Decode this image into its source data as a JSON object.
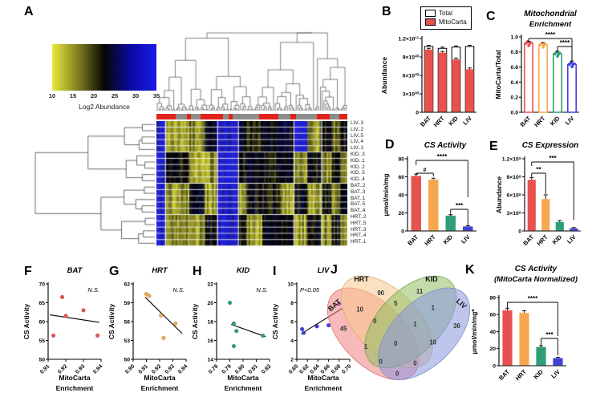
{
  "colors": {
    "red": "#E8524E",
    "orange": "#F6A84E",
    "green": "#2E9E7A",
    "blue": "#4341D8",
    "scatter_blue": "#3C3BE3",
    "annotation_red": "#E2231A",
    "annotation_gray": "#8C8C8C",
    "venn_bat": "#F08080",
    "venn_hrt": "#F8C890",
    "venn_kid": "#90C060",
    "venn_liv": "#8898E0"
  },
  "panel_a": {
    "label": "A",
    "colorbar": {
      "ticks": [
        "10",
        "15",
        "20",
        "25",
        "30",
        "35"
      ],
      "caption": "Log2 Abundance",
      "gradient": [
        "#E9E93C",
        "#000000",
        "#1A1AE8"
      ]
    },
    "row_labels": [
      "LIV..3",
      "LIV..2",
      "LIV..5",
      "LIV..4",
      "LIV..1",
      "KID..3",
      "KID..1",
      "KID..2",
      "KID..5",
      "KID..4",
      "BAT..2",
      "BAT..3",
      "BAT..1",
      "BAT..5",
      "BAT..4",
      "HRT..2",
      "HRT..5",
      "HRT..3",
      "HRT..4",
      "HRT..1"
    ],
    "annotation_segments": [
      {
        "c": "red",
        "w": 0.1
      },
      {
        "c": "gray",
        "w": 0.06
      },
      {
        "c": "red",
        "w": 0.02
      },
      {
        "c": "gray",
        "w": 0.05
      },
      {
        "c": "red",
        "w": 0.12
      },
      {
        "c": "gray",
        "w": 0.03
      },
      {
        "c": "red",
        "w": 0.02
      },
      {
        "c": "gray",
        "w": 0.14
      },
      {
        "c": "red",
        "w": 0.1
      },
      {
        "c": "gray",
        "w": 0.06
      },
      {
        "c": "red",
        "w": 0.03
      },
      {
        "c": "gray",
        "w": 0.11
      },
      {
        "c": "red",
        "w": 0.07
      },
      {
        "c": "gray",
        "w": 0.05
      },
      {
        "c": "red",
        "w": 0.04
      }
    ],
    "heatmap": {
      "rows": 20,
      "cols": 110,
      "block_widths": [
        5,
        14,
        9,
        7,
        12,
        5,
        9,
        11,
        7,
        8,
        8,
        6,
        5,
        4
      ],
      "group_of_rows": [
        "LIV",
        "LIV",
        "LIV",
        "LIV",
        "LIV",
        "KID",
        "KID",
        "KID",
        "KID",
        "KID",
        "BAT",
        "BAT",
        "BAT",
        "BAT",
        "BAT",
        "HRT",
        "HRT",
        "HRT",
        "HRT",
        "HRT"
      ],
      "block_levels": {
        "LIV": [
          1,
          0.15,
          0.2,
          0.55,
          1,
          0.55,
          0.45,
          0.5,
          0.55,
          1,
          0.2,
          0.5,
          0.2,
          0.45
        ],
        "KID": [
          1,
          0.45,
          0.15,
          0.2,
          1,
          0.5,
          0.55,
          0.45,
          0.5,
          0.2,
          0.5,
          0.15,
          0.45,
          0.2
        ],
        "BAT": [
          1,
          0.15,
          0.5,
          0.15,
          1,
          0.2,
          0.5,
          0.45,
          0.15,
          0.5,
          0.15,
          0.5,
          0.2,
          0.5
        ],
        "HRT": [
          1,
          0.2,
          0.15,
          0.5,
          1,
          0.5,
          0.15,
          0.5,
          0.45,
          0.15,
          0.5,
          0.2,
          0.5,
          0.15
        ]
      }
    }
  },
  "chart_data": [
    {
      "panel": "B",
      "type": "bar",
      "style": "grouped-overlay",
      "categories": [
        "BAT",
        "HRT",
        "KID",
        "LIV"
      ],
      "series": [
        {
          "name": "Total",
          "values": [
            107,
            104,
            106,
            107
          ],
          "errors": [
            2,
            2,
            2,
            2
          ],
          "color": "#FFFFFF"
        },
        {
          "name": "MitoCarta",
          "values": [
            102,
            97,
            86,
            70
          ],
          "errors": [
            2,
            2,
            2,
            2
          ],
          "color": "#E8524E"
        }
      ],
      "value_unit": "×10⁹",
      "ylabel": "Abundance",
      "ylim": [
        0,
        120
      ],
      "yticks": [
        {
          "v": 0,
          "t": "0"
        },
        {
          "v": 30,
          "t": "3×10¹⁰"
        },
        {
          "v": 60,
          "t": "6×10¹⁰"
        },
        {
          "v": 90,
          "t": "9×10¹⁰"
        },
        {
          "v": 120,
          "t": "1.2×10¹¹"
        }
      ],
      "legend": [
        "Total",
        "MitoCarta"
      ]
    },
    {
      "panel": "C",
      "type": "bar",
      "style": "outline-scatter",
      "title": [
        "Mitochondrial",
        "Enrichment"
      ],
      "categories": [
        "BAT",
        "HRT",
        "KID",
        "LIV"
      ],
      "values": [
        0.93,
        0.91,
        0.79,
        0.65
      ],
      "errors": [
        0.012,
        0.012,
        0.02,
        0.03
      ],
      "bar_colors": [
        "#E8524E",
        "#F6A84E",
        "#2E9E7A",
        "#4341D8"
      ],
      "ylabel": "MitoCarta/Total",
      "ylim": [
        0,
        1.0
      ],
      "yticks": [
        {
          "v": 0,
          "t": "0.0"
        },
        {
          "v": 0.2,
          "t": "0.2"
        },
        {
          "v": 0.4,
          "t": "0.4"
        },
        {
          "v": 0.6,
          "t": "0.6"
        },
        {
          "v": 0.8,
          "t": "0.8"
        },
        {
          "v": 1.0,
          "t": "1.0"
        }
      ],
      "sig": [
        {
          "i": 0,
          "j": 3,
          "label": "****"
        },
        {
          "i": 2,
          "j": 3,
          "label": "****"
        }
      ]
    },
    {
      "panel": "D",
      "type": "bar",
      "style": "solid",
      "title": [
        "CS Activity"
      ],
      "categories": [
        "BAT",
        "HRT",
        "KID",
        "LIV"
      ],
      "values": [
        61,
        57,
        17,
        5
      ],
      "errors": [
        2,
        1.5,
        1,
        0.8
      ],
      "bar_colors": [
        "#E8524E",
        "#F6A84E",
        "#2E9E7A",
        "#4341D8"
      ],
      "ylabel": "μmol/min/mg",
      "ylim": [
        0,
        80
      ],
      "yticks": [
        {
          "v": 0,
          "t": "0"
        },
        {
          "v": 20,
          "t": "20"
        },
        {
          "v": 40,
          "t": "40"
        },
        {
          "v": 60,
          "t": "60"
        },
        {
          "v": 80,
          "t": "80"
        }
      ],
      "sig": [
        {
          "i": 0,
          "j": 3,
          "label": "****"
        },
        {
          "i": 0,
          "j": 1,
          "label": "#"
        },
        {
          "i": 2,
          "j": 3,
          "label": "***"
        }
      ]
    },
    {
      "panel": "E",
      "type": "bar",
      "style": "solid",
      "title": [
        "CS Expression"
      ],
      "categories": [
        "BAT",
        "HRT",
        "KID",
        "LIV"
      ],
      "values": [
        850,
        530,
        150,
        45
      ],
      "errors": [
        35,
        70,
        25,
        12
      ],
      "value_unit": "×10⁶",
      "bar_colors": [
        "#E8524E",
        "#F6A84E",
        "#2E9E7A",
        "#4341D8"
      ],
      "ylabel": "Abundance",
      "ylim": [
        0,
        1200
      ],
      "yticks": [
        {
          "v": 0,
          "t": "0"
        },
        {
          "v": 300,
          "t": "3×10⁸"
        },
        {
          "v": 600,
          "t": "6×10⁸"
        },
        {
          "v": 900,
          "t": "9×10⁸"
        },
        {
          "v": 1200,
          "t": "1.2×10⁹"
        }
      ],
      "sig": [
        {
          "i": 0,
          "j": 1,
          "label": "**"
        },
        {
          "i": 0,
          "j": 3,
          "label": "***"
        }
      ]
    },
    {
      "panel": "F",
      "type": "scatter",
      "title": "BAT",
      "note": "N.S.",
      "note_pos": "right",
      "color": "#E8524E",
      "points": [
        [
          0.918,
          66.5
        ],
        [
          0.92,
          61.5
        ],
        [
          0.913,
          56.3
        ],
        [
          0.93,
          63.0
        ],
        [
          0.938,
          56.3
        ]
      ],
      "trend": [
        [
          0.911,
          61.8
        ],
        [
          0.939,
          59.8
        ]
      ],
      "xlim": [
        0.91,
        0.94
      ],
      "xticks": [
        "0.91",
        "0.92",
        "0.93",
        "0.94"
      ],
      "ylim": [
        50,
        70
      ],
      "yticks": [
        "50",
        "55",
        "60",
        "65",
        "70"
      ],
      "xlabel": [
        "MitoCarta",
        "Enrichment"
      ],
      "ylabel": "CS Activity"
    },
    {
      "panel": "G",
      "type": "scatter",
      "title": "HRT",
      "note": "N.S.",
      "note_pos": "right",
      "color": "#F6A84E",
      "points": [
        [
          0.91,
          60.4
        ],
        [
          0.912,
          60.1
        ],
        [
          0.921,
          57.0
        ],
        [
          0.923,
          53.4
        ],
        [
          0.932,
          55.7
        ]
      ],
      "trend": [
        [
          0.909,
          59.9
        ],
        [
          0.937,
          54.1
        ]
      ],
      "xlim": [
        0.9,
        0.94
      ],
      "xticks": [
        "0.90",
        "0.91",
        "0.92",
        "0.93",
        "0.94"
      ],
      "ylim": [
        50,
        62
      ],
      "yticks": [
        "50",
        "53",
        "56",
        "59",
        "62"
      ],
      "xlabel": [
        "MitoCarta",
        "Enrichment"
      ],
      "ylabel": "CS Activity"
    },
    {
      "panel": "H",
      "type": "scatter",
      "title": "KID",
      "note": "N.S.",
      "note_pos": "right",
      "color": "#2E9E7A",
      "points": [
        [
          0.79,
          20.0
        ],
        [
          0.793,
          17.8
        ],
        [
          0.795,
          17.0
        ],
        [
          0.793,
          15.4
        ],
        [
          0.815,
          16.5
        ]
      ],
      "trend": [
        [
          0.791,
          17.7
        ],
        [
          0.817,
          16.4
        ]
      ],
      "xlim": [
        0.78,
        0.82
      ],
      "xticks": [
        "0.78",
        "0.79",
        "0.80",
        "0.81",
        "0.82"
      ],
      "ylim": [
        14,
        22
      ],
      "yticks": [
        "14",
        "16",
        "18",
        "20",
        "22"
      ],
      "xlabel": [
        "MitoCarta",
        "Enrichment"
      ],
      "ylabel": "CS Activity"
    },
    {
      "panel": "I",
      "type": "scatter",
      "title": "LIV",
      "note": "P<0.05",
      "note_pos": "left",
      "color": "#3C3BE3",
      "points": [
        [
          0.61,
          5.2
        ],
        [
          0.613,
          4.8
        ],
        [
          0.638,
          5.5
        ],
        [
          0.66,
          5.6
        ],
        [
          0.68,
          7.9
        ]
      ],
      "trend": [
        [
          0.608,
          4.7
        ],
        [
          0.686,
          7.4
        ]
      ],
      "xlim": [
        0.6,
        0.7
      ],
      "xticks": [
        "0.60",
        "0.62",
        "0.64",
        "0.66",
        "0.68",
        "0.70"
      ],
      "ylim": [
        2,
        10
      ],
      "yticks": [
        "2",
        "4",
        "6",
        "8",
        "10"
      ],
      "xlabel": [
        "MitoCarta",
        "Enrichment"
      ],
      "ylabel": "CS Activity"
    },
    {
      "panel": "J",
      "type": "venn",
      "set_labels": [
        {
          "name": "BAT",
          "x": 8,
          "y": 24,
          "rot": -42
        },
        {
          "name": "HRT",
          "x": 25,
          "y": 7,
          "rot": 0
        },
        {
          "name": "KID",
          "x": 72,
          "y": 7,
          "rot": 0
        },
        {
          "name": "LIV",
          "x": 91,
          "y": 23,
          "rot": 42
        }
      ],
      "regions": [
        {
          "sets": "HRT",
          "value": "90",
          "x": 38,
          "y": 16
        },
        {
          "sets": "KID",
          "value": "11",
          "x": 64,
          "y": 15
        },
        {
          "sets": "BAT∩HRT",
          "value": "10",
          "x": 24,
          "y": 27
        },
        {
          "sets": "HRT∩KID",
          "value": "5",
          "x": 48,
          "y": 23
        },
        {
          "sets": "KID∩LIV",
          "value": "1",
          "x": 73,
          "y": 26
        },
        {
          "sets": "BAT",
          "value": "45",
          "x": 13,
          "y": 40
        },
        {
          "sets": "BAT∩HRT∩KID",
          "value": "0",
          "x": 34,
          "y": 35
        },
        {
          "sets": "HRT∩KID∩LIV",
          "value": "1",
          "x": 61,
          "y": 37
        },
        {
          "sets": "LIV",
          "value": "36",
          "x": 89,
          "y": 38
        },
        {
          "sets": "BAT∩KID",
          "value": "1",
          "x": 28,
          "y": 52
        },
        {
          "sets": "BAT∩HRT∩KID∩LIV",
          "value": "0",
          "x": 48,
          "y": 50
        },
        {
          "sets": "HRT∩LIV",
          "value": "10",
          "x": 73,
          "y": 49
        },
        {
          "sets": "BAT∩KID∩LIV",
          "value": "0",
          "x": 38,
          "y": 62
        },
        {
          "sets": "BAT∩HRT∩LIV",
          "value": "0",
          "x": 61,
          "y": 63
        },
        {
          "sets": "BAT∩LIV",
          "value": "0",
          "x": 49,
          "y": 70
        }
      ]
    },
    {
      "panel": "K",
      "type": "bar",
      "style": "solid",
      "title": [
        "CS Activity",
        "(MitoCarta Normalized)"
      ],
      "categories": [
        "BAT",
        "HRT",
        "KID",
        "LIV"
      ],
      "values": [
        65,
        62,
        22,
        9
      ],
      "errors": [
        2.5,
        2.5,
        1.5,
        1
      ],
      "bar_colors": [
        "#E8524E",
        "#F6A84E",
        "#2E9E7A",
        "#4341D8"
      ],
      "ylabel": "μmol/min/mg*",
      "ylim": [
        0,
        80
      ],
      "yticks": [
        {
          "v": 0,
          "t": "0"
        },
        {
          "v": 20,
          "t": "20"
        },
        {
          "v": 40,
          "t": "40"
        },
        {
          "v": 60,
          "t": "60"
        },
        {
          "v": 80,
          "t": "80"
        }
      ],
      "sig": [
        {
          "i": 0,
          "j": 3,
          "label": "****"
        },
        {
          "i": 2,
          "j": 3,
          "label": "***"
        }
      ]
    }
  ]
}
